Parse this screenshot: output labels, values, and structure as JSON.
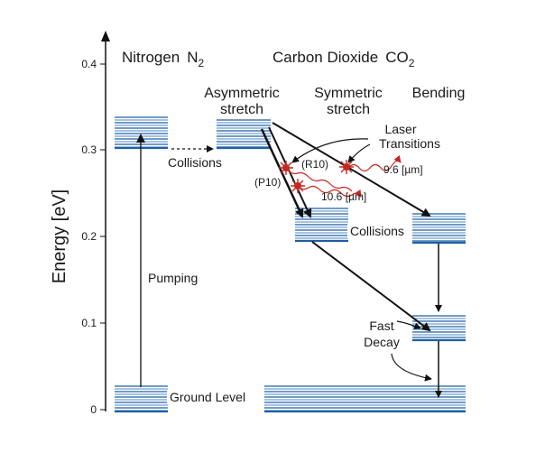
{
  "axis": {
    "ylabel": "Energy  [eV]",
    "ticks": [
      "0",
      "0.1",
      "0.2",
      "0.3",
      "0.4"
    ]
  },
  "headers": {
    "nitrogen": "Nitrogen",
    "nitrogen_formula": "N",
    "nitrogen_sub": "2",
    "co2": "Carbon Dioxide",
    "co2_formula": "CO",
    "co2_sub": "2"
  },
  "columns": {
    "asym_line1": "Asymmetric",
    "asym_line2": "stretch",
    "sym_line1": "Symmetric",
    "sym_line2": "stretch",
    "bending": "Bending"
  },
  "labels": {
    "collisions_top": "Collisions",
    "collisions_mid": "Collisions",
    "pumping": "Pumping",
    "ground_level": "Ground Level",
    "laser_line1": "Laser",
    "laser_line2": "Transitions",
    "r10": "(R10)",
    "p10": "(P10)",
    "wl_96": "9.6 [µm]",
    "wl_106": "10.6 [µm]",
    "fast_line1": "Fast",
    "fast_line2": "Decay"
  },
  "colors": {
    "level_blue": "#1f5fa3",
    "level_light": "#6f9fd1",
    "laser_red": "#c42820",
    "arrow": "#111111"
  }
}
